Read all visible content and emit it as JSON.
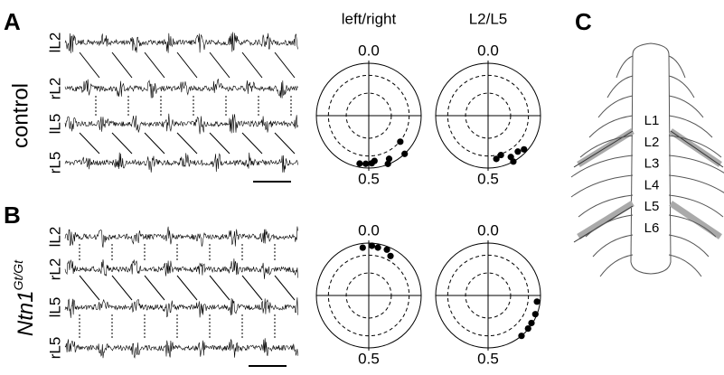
{
  "panels": {
    "A": {
      "label": "A",
      "condition": "control",
      "traces": [
        "lL2",
        "rL2",
        "lL5",
        "rL5"
      ]
    },
    "B": {
      "label": "B",
      "condition": "Ntn1",
      "condition_superscript": "Gt/Gt",
      "traces": [
        "lL2",
        "rL2",
        "lL5",
        "rL5"
      ]
    },
    "C": {
      "label": "C",
      "segments": [
        "L1",
        "L2",
        "L3",
        "L4",
        "L5",
        "L6"
      ]
    }
  },
  "column_titles": [
    "left/right",
    "L2/L5"
  ],
  "chart_data": [
    {
      "type": "polar",
      "rlim": [
        0,
        1
      ],
      "color": "#000000",
      "thetaticks": [
        {
          "value": 0,
          "label": "0.0"
        },
        {
          "value": 0.5,
          "label": "0.5"
        }
      ],
      "phase": [
        0.53,
        0.51,
        0.49,
        0.48,
        0.44,
        0.43,
        0.36,
        0.38
      ],
      "radius": [
        0.93,
        0.92,
        0.91,
        0.87,
        0.99,
        0.91,
        0.78,
        1.0
      ]
    },
    {
      "type": "polar",
      "rlim": [
        0,
        1
      ],
      "color": "#000000",
      "thetaticks": [
        {
          "value": 0,
          "label": "0.0"
        },
        {
          "value": 0.5,
          "label": "0.5"
        }
      ],
      "phase": [
        0.47,
        0.45,
        0.42,
        0.39,
        0.37,
        0.42
      ],
      "radius": [
        0.84,
        0.79,
        0.9,
        0.89,
        0.94,
        1.0
      ]
    },
    {
      "type": "polar",
      "rlim": [
        0,
        1
      ],
      "color": "#000000",
      "thetaticks": [
        {
          "value": 0,
          "label": "0.0"
        },
        {
          "value": 0.5,
          "label": "0.5"
        }
      ],
      "phase": [
        0.98,
        0.01,
        0.03,
        0.06,
        0.08
      ],
      "radius": [
        0.92,
        0.95,
        0.93,
        0.94,
        0.86
      ]
    },
    {
      "type": "polar",
      "rlim": [
        0,
        1
      ],
      "color": "#000000",
      "thetaticks": [
        {
          "value": 0,
          "label": "0.0"
        },
        {
          "value": 0.5,
          "label": "0.5"
        }
      ],
      "phase": [
        0.27,
        0.31,
        0.34,
        0.36,
        0.39
      ],
      "radius": [
        0.94,
        0.97,
        0.98,
        0.99,
        1.0
      ]
    }
  ]
}
